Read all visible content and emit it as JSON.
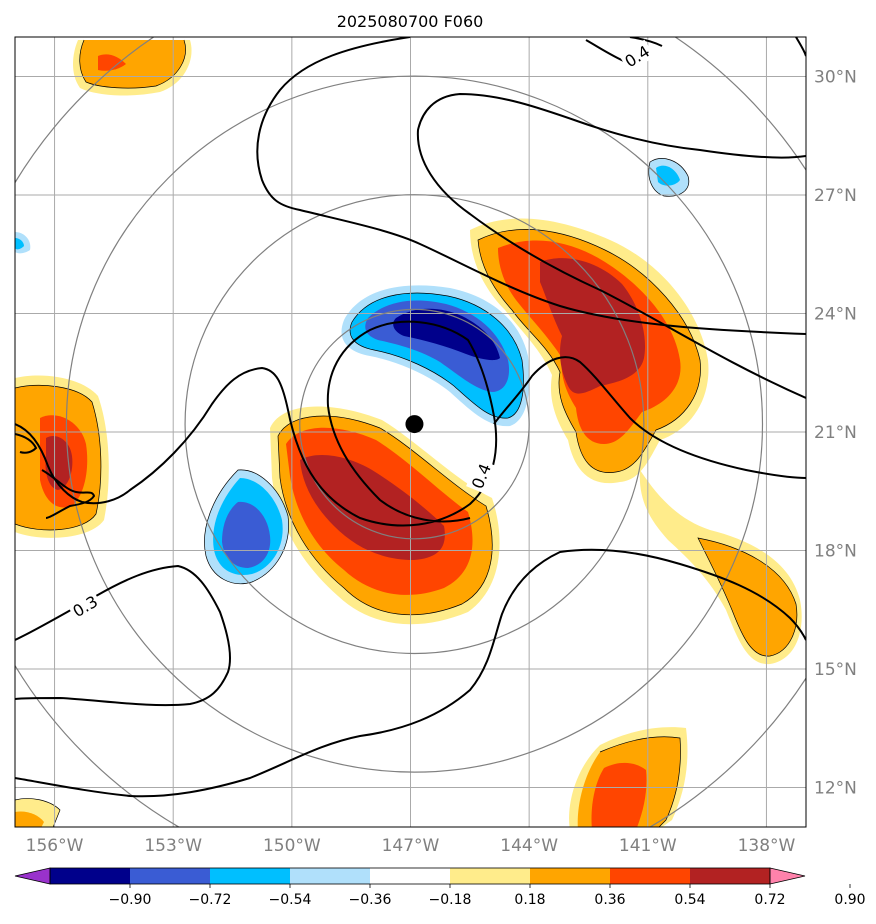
{
  "chart_data": {
    "type": "heatmap",
    "title": "2025080700 F060",
    "projection": "map, longitude/latitude grid",
    "grid": true,
    "x_range": [
      -157,
      -137
    ],
    "y_range": [
      11,
      31
    ],
    "x_ticks": [
      {
        "value": -156,
        "label": "156°W"
      },
      {
        "value": -153,
        "label": "153°W"
      },
      {
        "value": -150,
        "label": "150°W"
      },
      {
        "value": -147,
        "label": "147°W"
      },
      {
        "value": -144,
        "label": "144°W"
      },
      {
        "value": -141,
        "label": "141°W"
      },
      {
        "value": -138,
        "label": "138°W"
      }
    ],
    "y_ticks": [
      {
        "value": 30,
        "label": "30°N"
      },
      {
        "value": 27,
        "label": "27°N"
      },
      {
        "value": 24,
        "label": "24°N"
      },
      {
        "value": 21,
        "label": "21°N"
      },
      {
        "value": 18,
        "label": "18°N"
      },
      {
        "value": 15,
        "label": "15°N"
      },
      {
        "value": 12,
        "label": "12°N"
      }
    ],
    "storm_center": {
      "lon": -146.9,
      "lat": 21.2
    },
    "range_rings_deg": [
      2.9,
      5.8,
      8.8,
      11.8
    ],
    "colorbar": {
      "location": "bottom",
      "extend": "both",
      "tick_labels": [
        "−0.90",
        "−0.72",
        "−0.54",
        "−0.36",
        "−0.18",
        "0.18",
        "0.36",
        "0.54",
        "0.72",
        "0.90"
      ],
      "bins": [
        {
          "range": "< -0.90",
          "color": "#9932cc"
        },
        {
          "range": "-0.90 to -0.72",
          "color": "#00008b"
        },
        {
          "range": "-0.72 to -0.54",
          "color": "#3a5cd4"
        },
        {
          "range": "-0.54 to -0.36",
          "color": "#00bfff"
        },
        {
          "range": "-0.36 to -0.18",
          "color": "#b0e0fb"
        },
        {
          "range": "-0.18 to 0.18",
          "color": "#ffffff"
        },
        {
          "range": "0.18 to 0.36",
          "color": "#ffec8b"
        },
        {
          "range": "0.36 to 0.54",
          "color": "#ffa500"
        },
        {
          "range": "0.54 to 0.72",
          "color": "#ff4500"
        },
        {
          "range": "0.72 to 0.90",
          "color": "#b22222"
        },
        {
          "range": "> 0.90",
          "color": "#ff82ab"
        }
      ]
    },
    "contour_labels": [
      {
        "text": "0.4",
        "lon": -141.0,
        "lat": 30.6
      },
      {
        "text": "0.4",
        "lon": -145.0,
        "lat": 20.0
      },
      {
        "text": "0.3",
        "lon": -155.0,
        "lat": 16.3
      }
    ],
    "color_features": [
      {
        "sign": "positive",
        "max_bin": "0.72 to 0.90",
        "center": {
          "lon": -146.3,
          "lat": 18.6
        }
      },
      {
        "sign": "positive",
        "max_bin": "0.72 to 0.90",
        "center": {
          "lon": -141.8,
          "lat": 23.6
        }
      },
      {
        "sign": "positive",
        "max_bin": "0.54 to 0.72",
        "center": {
          "lon": -140.9,
          "lat": 12.7
        }
      },
      {
        "sign": "positive",
        "max_bin": "0.54 to 0.72",
        "center": {
          "lon": -155.4,
          "lat": 20.6
        }
      },
      {
        "sign": "positive",
        "max_bin": "0.54 to 0.72",
        "center": {
          "lon": -154.7,
          "lat": 30.5
        }
      },
      {
        "sign": "positive",
        "max_bin": "0.36 to 0.54",
        "center": {
          "lon": -138.5,
          "lat": 16.8
        }
      },
      {
        "sign": "negative",
        "max_bin": "-0.90 to -0.72",
        "center": {
          "lon": -146.5,
          "lat": 23.8
        }
      },
      {
        "sign": "negative",
        "max_bin": "-0.72 to -0.54",
        "center": {
          "lon": -150.9,
          "lat": 18.7
        }
      },
      {
        "sign": "negative",
        "max_bin": "-0.54 to -0.36",
        "center": {
          "lon": -140.6,
          "lat": 27.6
        }
      }
    ]
  }
}
